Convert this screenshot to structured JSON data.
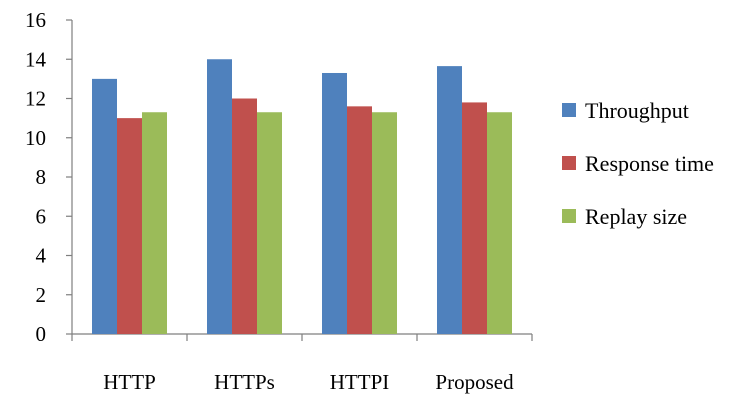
{
  "chart_data": {
    "type": "bar",
    "title": "",
    "xlabel": "",
    "ylabel": "",
    "categories": [
      "HTTP",
      "HTTPs",
      "HTTPI",
      "Proposed"
    ],
    "series": [
      {
        "name": "Throughput",
        "color": "#4F81BD",
        "values": [
          13.0,
          14.0,
          13.3,
          13.65
        ]
      },
      {
        "name": "Response time",
        "color": "#C0504D",
        "values": [
          11.0,
          12.0,
          11.6,
          11.8
        ]
      },
      {
        "name": "Replay size",
        "color": "#9BBB59",
        "values": [
          11.3,
          11.3,
          11.3,
          11.3
        ]
      }
    ],
    "ylim": [
      0,
      16
    ],
    "yticks": [
      "0",
      "2",
      "4",
      "6",
      "8",
      "10",
      "12",
      "14",
      "16"
    ],
    "grid": false,
    "legend": "right"
  }
}
